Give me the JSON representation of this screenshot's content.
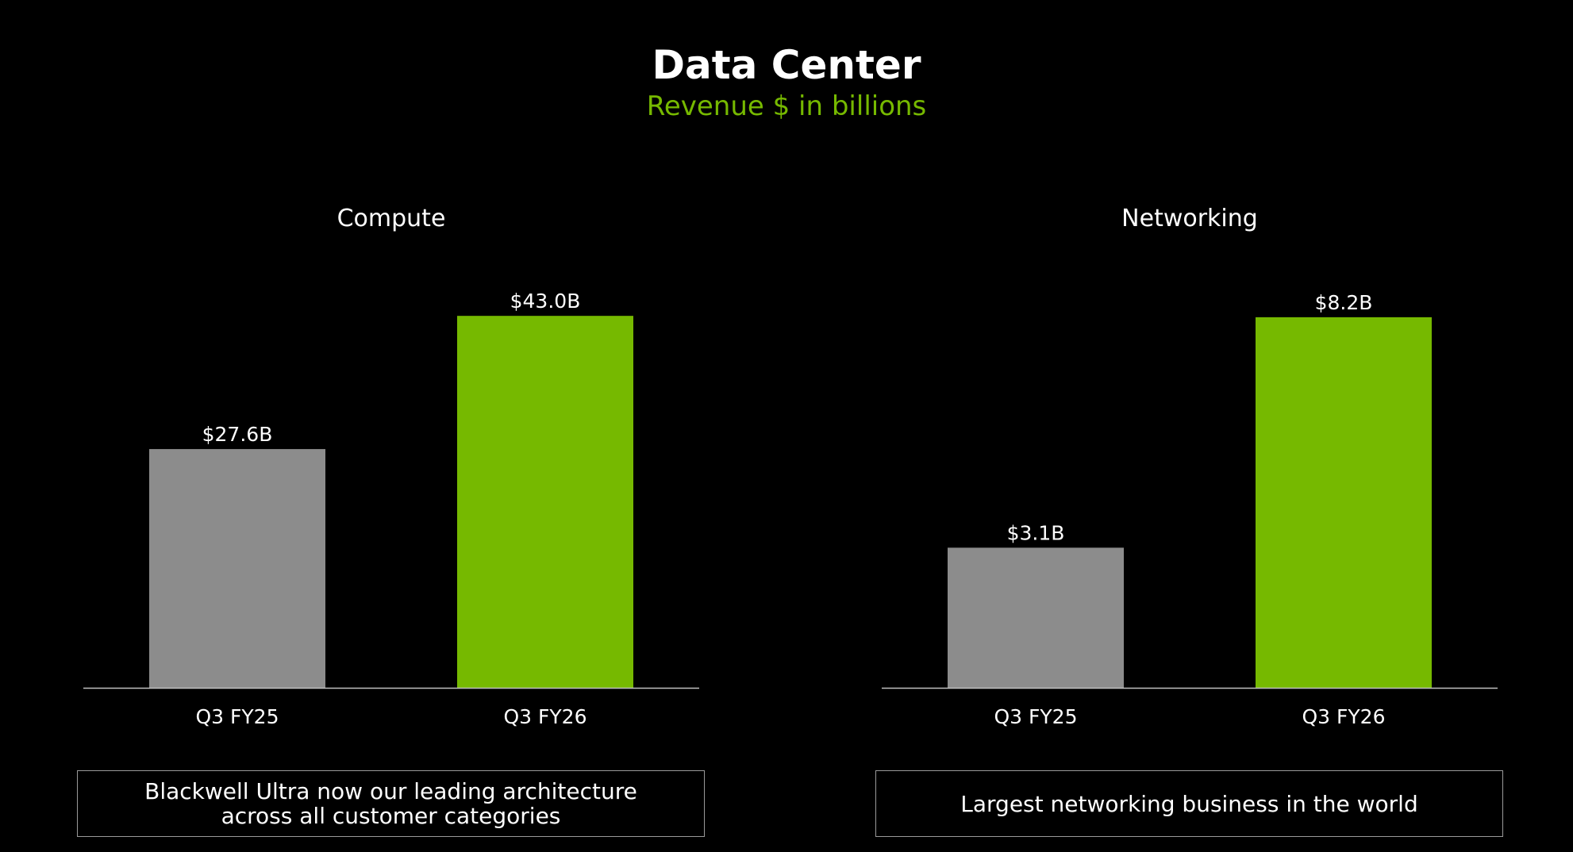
{
  "title": "Data Center",
  "subtitle": "Revenue $ in billions",
  "colors": {
    "background": "#000000",
    "prior_period_bar": "#8c8c8c",
    "current_period_bar": "#76b900",
    "subtitle": "#76b900",
    "axis": "#bfbfbf"
  },
  "chart_data": [
    {
      "type": "bar",
      "title": "Compute",
      "categories": [
        "Q3 FY25",
        "Q3 FY26"
      ],
      "values": [
        27.6,
        43.0
      ],
      "data_labels": [
        "$27.6B",
        "$43.0B"
      ],
      "bar_colors": [
        "#8c8c8c",
        "#76b900"
      ],
      "xlabel": "",
      "ylabel": "",
      "ylim": [
        0,
        46.5
      ],
      "grid": false,
      "legend": "none"
    },
    {
      "type": "bar",
      "title": "Networking",
      "categories": [
        "Q3 FY25",
        "Q3 FY26"
      ],
      "values": [
        3.1,
        8.2
      ],
      "data_labels": [
        "$3.1B",
        "$8.2B"
      ],
      "bar_colors": [
        "#8c8c8c",
        "#76b900"
      ],
      "xlabel": "",
      "ylabel": "",
      "ylim": [
        0,
        8.9
      ],
      "grid": false,
      "legend": "none"
    }
  ],
  "callouts": {
    "compute": {
      "line1": "Blackwell Ultra now our leading architecture",
      "line2": "across all customer categories"
    },
    "networking": "Largest networking business in the world"
  }
}
